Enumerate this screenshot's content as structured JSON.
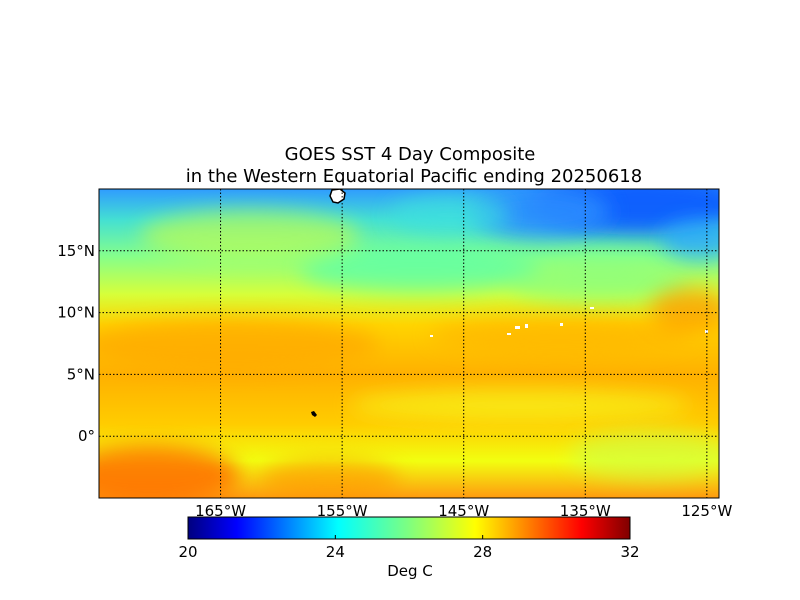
{
  "title": {
    "line1": "GOES SST 4 Day Composite",
    "line2": "in the Western Equatorial Pacific ending 20250618"
  },
  "map": {
    "lon_range": [
      -175,
      -124
    ],
    "lat_range": [
      -5,
      20
    ],
    "meridian_labels": [
      {
        "lon": -165,
        "label": "165°W"
      },
      {
        "lon": -155,
        "label": "155°W"
      },
      {
        "lon": -145,
        "label": "145°W"
      },
      {
        "lon": -135,
        "label": "135°W"
      },
      {
        "lon": -125,
        "label": "125°W"
      }
    ],
    "parallel_labels": [
      {
        "lat": 15,
        "label": "15°N"
      },
      {
        "lat": 10,
        "label": "10°N"
      },
      {
        "lat": 5,
        "label": "5°N"
      },
      {
        "lat": 0,
        "label": "0°"
      }
    ],
    "grid_style": "dotted",
    "colormap": "jet",
    "land_color": "#ffffff"
  },
  "colorbar": {
    "vmin": 20,
    "vmax": 32,
    "ticks": [
      {
        "value": 20,
        "label": "20"
      },
      {
        "value": 24,
        "label": "24"
      },
      {
        "value": 28,
        "label": "28"
      },
      {
        "value": 32,
        "label": "32"
      }
    ],
    "units_label": "Deg C"
  }
}
